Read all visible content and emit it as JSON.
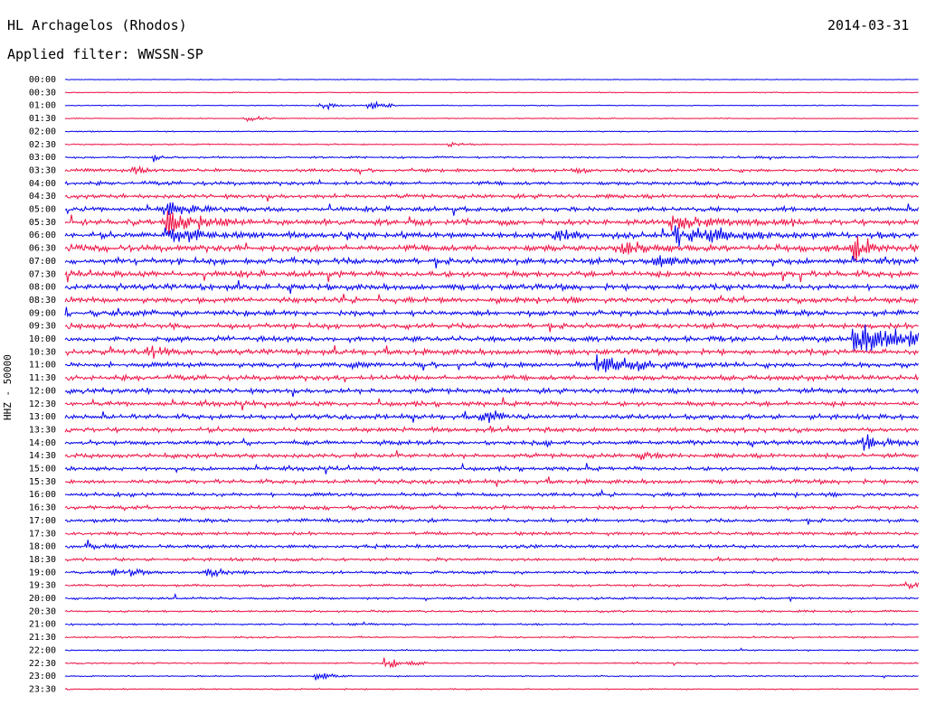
{
  "header": {
    "station": "HL Archagelos (Rhodos)",
    "date": "2014-03-31",
    "filter_label": "Applied filter: WWSSN-SP"
  },
  "chart_data": {
    "type": "line",
    "ylabel": "HHZ - 50000",
    "trace_colors": [
      "#0000ee",
      "#ee1144"
    ],
    "row_labels": [
      "00:00",
      "00:30",
      "01:00",
      "01:30",
      "02:00",
      "02:30",
      "03:00",
      "03:30",
      "04:00",
      "04:30",
      "05:00",
      "05:30",
      "06:00",
      "06:30",
      "07:00",
      "07:30",
      "08:00",
      "08:30",
      "09:00",
      "09:30",
      "10:00",
      "10:30",
      "11:00",
      "11:30",
      "12:00",
      "12:30",
      "13:00",
      "13:30",
      "14:00",
      "14:30",
      "15:00",
      "15:30",
      "16:00",
      "16:30",
      "17:00",
      "17:30",
      "18:00",
      "18:30",
      "19:00",
      "19:30",
      "20:00",
      "20:30",
      "21:00",
      "21:30",
      "22:00",
      "22:30",
      "23:00",
      "23:30"
    ],
    "noise_levels": [
      0.4,
      0.5,
      0.5,
      0.5,
      0.6,
      0.7,
      1.0,
      1.8,
      2.0,
      2.2,
      2.6,
      3.0,
      3.2,
      3.4,
      3.3,
      3.2,
      3.0,
      3.0,
      2.9,
      2.8,
      2.8,
      2.8,
      2.7,
      2.7,
      2.6,
      2.6,
      2.5,
      2.5,
      2.4,
      2.3,
      2.2,
      2.2,
      2.0,
      2.0,
      1.9,
      1.8,
      1.8,
      1.6,
      1.5,
      1.3,
      1.2,
      1.1,
      1.0,
      0.9,
      0.8,
      0.8,
      0.7,
      0.7
    ],
    "events": [
      {
        "row": 2,
        "minute": 9.0,
        "amp": 7,
        "dur": 0.6
      },
      {
        "row": 2,
        "minute": 10.7,
        "amp": 9,
        "dur": 0.5
      },
      {
        "row": 3,
        "minute": 6.3,
        "amp": 5,
        "dur": 0.8
      },
      {
        "row": 5,
        "minute": 13.5,
        "amp": 4,
        "dur": 0.7
      },
      {
        "row": 6,
        "minute": 3.1,
        "amp": 6,
        "dur": 0.3
      },
      {
        "row": 6,
        "minute": 30.0,
        "amp": 8,
        "dur": 0.3
      },
      {
        "row": 7,
        "minute": 2.4,
        "amp": 9,
        "dur": 0.6
      },
      {
        "row": 7,
        "minute": 17.9,
        "amp": 7,
        "dur": 0.5
      },
      {
        "row": 10,
        "minute": 3.5,
        "amp": 14,
        "dur": 1.2
      },
      {
        "row": 11,
        "minute": 3.6,
        "amp": 22,
        "dur": 1.5
      },
      {
        "row": 12,
        "minute": 3.5,
        "amp": 16,
        "dur": 1.8
      },
      {
        "row": 12,
        "minute": 17.1,
        "amp": 12,
        "dur": 1.0
      },
      {
        "row": 11,
        "minute": 21.3,
        "amp": 13,
        "dur": 2.5
      },
      {
        "row": 12,
        "minute": 21.4,
        "amp": 16,
        "dur": 3.0
      },
      {
        "row": 13,
        "minute": 19.6,
        "amp": 12,
        "dur": 1.5
      },
      {
        "row": 14,
        "minute": 20.7,
        "amp": 10,
        "dur": 1.5
      },
      {
        "row": 13,
        "minute": 27.7,
        "amp": 25,
        "dur": 0.8
      },
      {
        "row": 20,
        "minute": 27.7,
        "amp": 28,
        "dur": 2.0
      },
      {
        "row": 22,
        "minute": 18.7,
        "amp": 14,
        "dur": 2.5
      },
      {
        "row": 22,
        "minute": 10.1,
        "amp": 8,
        "dur": 0.8
      },
      {
        "row": 21,
        "minute": 2.9,
        "amp": 10,
        "dur": 1.2
      },
      {
        "row": 26,
        "minute": 14.6,
        "amp": 12,
        "dur": 1.0
      },
      {
        "row": 28,
        "minute": 28.1,
        "amp": 12,
        "dur": 1.2
      },
      {
        "row": 29,
        "minute": 20.1,
        "amp": 8,
        "dur": 1.0
      },
      {
        "row": 36,
        "minute": 0.8,
        "amp": 8,
        "dur": 1.0
      },
      {
        "row": 38,
        "minute": 1.7,
        "amp": 10,
        "dur": 1.0
      },
      {
        "row": 38,
        "minute": 4.9,
        "amp": 9,
        "dur": 1.0
      },
      {
        "row": 39,
        "minute": 29.6,
        "amp": 8,
        "dur": 0.6
      },
      {
        "row": 45,
        "minute": 11.2,
        "amp": 10,
        "dur": 0.8
      },
      {
        "row": 46,
        "minute": 8.8,
        "amp": 8,
        "dur": 0.6
      }
    ]
  }
}
